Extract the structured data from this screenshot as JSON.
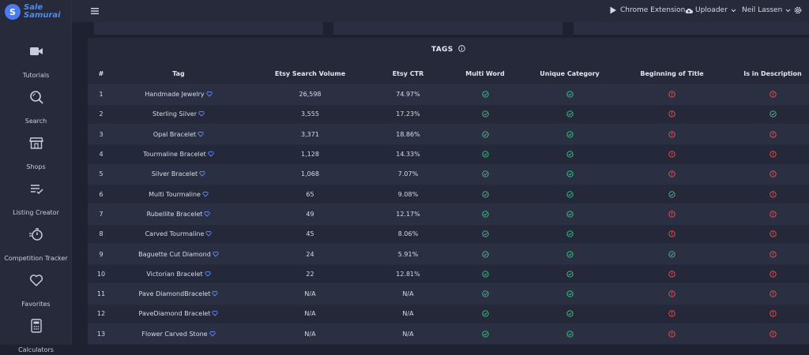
{
  "app": {
    "logo_line1": "Sale",
    "logo_line2": "Samurai"
  },
  "sidebar": {
    "items": [
      {
        "label": "Tutorials",
        "icon": "video-icon"
      },
      {
        "label": "Search",
        "icon": "search-icon"
      },
      {
        "label": "Shops",
        "icon": "shop-icon"
      },
      {
        "label": "Listing Creator",
        "icon": "list-edit-icon"
      },
      {
        "label": "Competition Tracker",
        "icon": "stopwatch-icon"
      },
      {
        "label": "Favorites",
        "icon": "heart-icon"
      },
      {
        "label": "Calculators",
        "icon": "calculator-icon"
      }
    ]
  },
  "topbar": {
    "chrome_extension": "Chrome Extension",
    "uploader": "Uploader",
    "user": "Neil Lassen"
  },
  "tags_panel": {
    "title": "TAGS",
    "columns": [
      "#",
      "Tag",
      "Etsy Search Volume",
      "Etsy CTR",
      "Multi Word",
      "Unique Category",
      "Beginning of Title",
      "Is in Description"
    ],
    "rows": [
      {
        "num": "1",
        "tag": "Handmade Jewelry",
        "volume": "26,598",
        "ctr": "74.97%",
        "multi": "ok",
        "unique": "ok",
        "begin": "warn",
        "desc": "warn"
      },
      {
        "num": "2",
        "tag": "Sterling Silver",
        "volume": "3,555",
        "ctr": "17.23%",
        "multi": "ok",
        "unique": "ok",
        "begin": "warn",
        "desc": "ok"
      },
      {
        "num": "3",
        "tag": "Opal Bracelet",
        "volume": "3,371",
        "ctr": "18.86%",
        "multi": "ok",
        "unique": "ok",
        "begin": "warn",
        "desc": "warn"
      },
      {
        "num": "4",
        "tag": "Tourmaline Bracelet",
        "volume": "1,128",
        "ctr": "14.33%",
        "multi": "ok",
        "unique": "ok",
        "begin": "warn",
        "desc": "warn"
      },
      {
        "num": "5",
        "tag": "Silver Bracelet",
        "volume": "1,068",
        "ctr": "7.07%",
        "multi": "ok",
        "unique": "ok",
        "begin": "warn",
        "desc": "warn"
      },
      {
        "num": "6",
        "tag": "Multi Tourmaline",
        "volume": "65",
        "ctr": "9.08%",
        "multi": "ok",
        "unique": "ok",
        "begin": "ok",
        "desc": "warn"
      },
      {
        "num": "7",
        "tag": "Rubellite Bracelet",
        "volume": "49",
        "ctr": "12.17%",
        "multi": "ok",
        "unique": "ok",
        "begin": "warn",
        "desc": "warn"
      },
      {
        "num": "8",
        "tag": "Carved Tourmaline",
        "volume": "45",
        "ctr": "8.06%",
        "multi": "ok",
        "unique": "ok",
        "begin": "warn",
        "desc": "warn"
      },
      {
        "num": "9",
        "tag": "Baguette Cut Diamond",
        "volume": "24",
        "ctr": "5.91%",
        "multi": "ok",
        "unique": "ok",
        "begin": "ok",
        "desc": "warn"
      },
      {
        "num": "10",
        "tag": "Victorian Bracelet",
        "volume": "22",
        "ctr": "12.81%",
        "multi": "ok",
        "unique": "ok",
        "begin": "warn",
        "desc": "warn"
      },
      {
        "num": "11",
        "tag": "Pave DiamondBracelet",
        "volume": "N/A",
        "ctr": "N/A",
        "multi": "ok",
        "unique": "ok",
        "begin": "warn",
        "desc": "warn"
      },
      {
        "num": "12",
        "tag": "PaveDiamond Bracelet",
        "volume": "N/A",
        "ctr": "N/A",
        "multi": "ok",
        "unique": "ok",
        "begin": "warn",
        "desc": "warn"
      },
      {
        "num": "13",
        "tag": "Flower Carved Stone",
        "volume": "N/A",
        "ctr": "N/A",
        "multi": "ok",
        "unique": "ok",
        "begin": "warn",
        "desc": "warn"
      }
    ]
  },
  "colors": {
    "ok": "#3ec48a",
    "warn": "#ee5656",
    "accent": "#4a8cf7",
    "heart": "#5b8cff"
  }
}
